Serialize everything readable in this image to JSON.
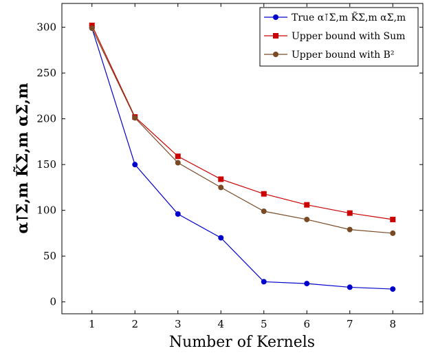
{
  "chart_data": {
    "type": "line",
    "x": [
      1,
      2,
      3,
      4,
      5,
      6,
      7,
      8
    ],
    "xlabel": "Number of Kernels",
    "ylabel": "α⊺Σ,m K̃Σ,m αΣ,m",
    "xlim": [
      0.3,
      8.7
    ],
    "ylim": [
      -13,
      326
    ],
    "xticks": [
      1,
      2,
      3,
      4,
      5,
      6,
      7,
      8
    ],
    "yticks": [
      0,
      50,
      100,
      150,
      200,
      250,
      300
    ],
    "grid": false,
    "legend_position": "top-right",
    "series": [
      {
        "name": "True α⊺Σ,m K̃Σ,m αΣ,m",
        "color": "#0000cc",
        "marker": "circle",
        "values": [
          299,
          150,
          96,
          70,
          22,
          20,
          16,
          14
        ]
      },
      {
        "name": "Upper bound with Sum",
        "color": "#cc0000",
        "marker": "square",
        "values": [
          302,
          202,
          159,
          134,
          118,
          106,
          97,
          90
        ]
      },
      {
        "name": "Upper bound with B²",
        "color": "#7a4a24",
        "marker": "circle",
        "values": [
          299,
          201,
          152,
          125,
          99,
          90,
          79,
          75
        ]
      }
    ]
  }
}
